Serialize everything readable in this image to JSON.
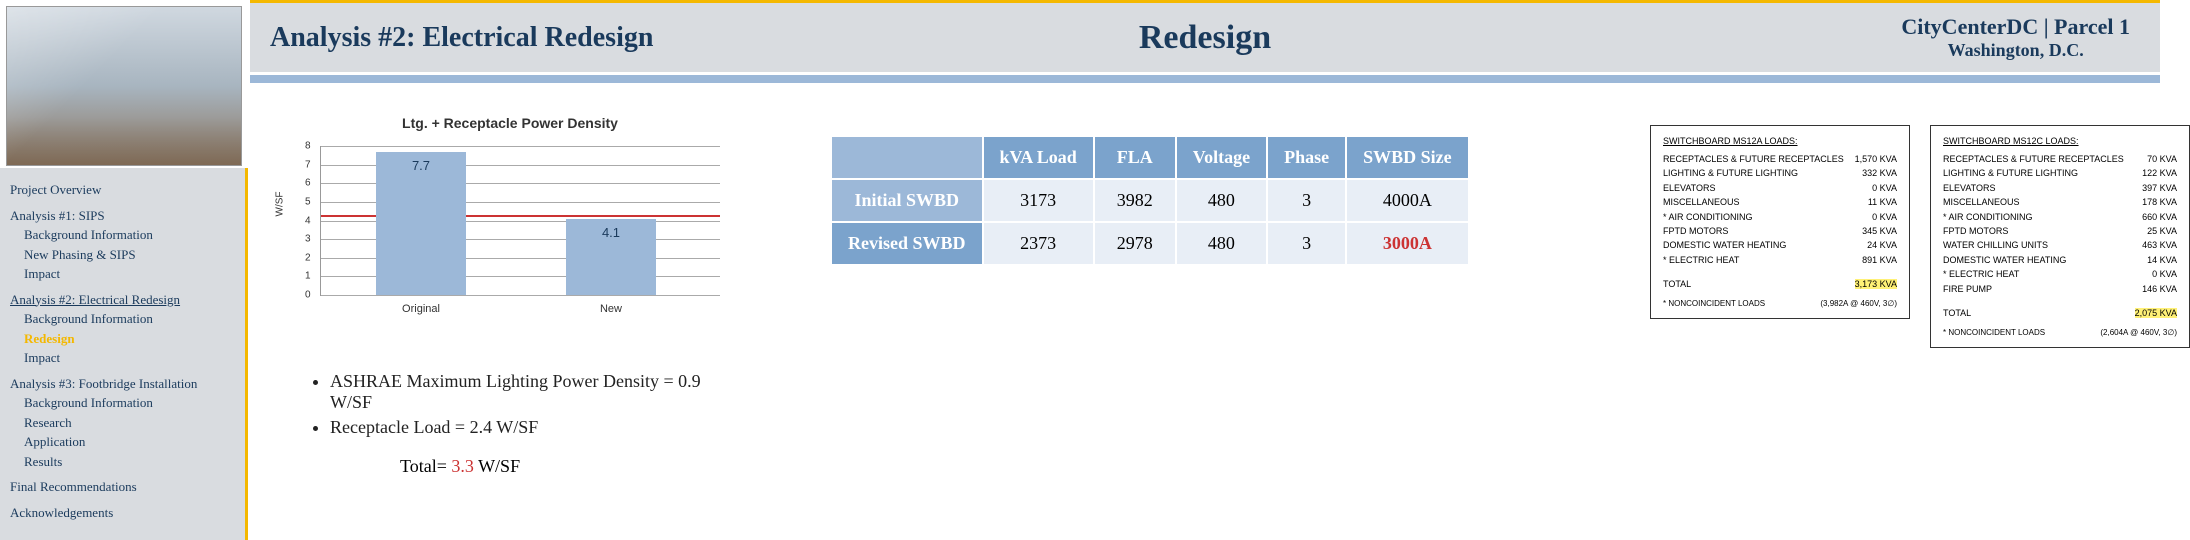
{
  "header": {
    "left_title": "Analysis #2: Electrical Redesign",
    "center": "Redesign",
    "right_top": "CityCenterDC | Parcel 1",
    "right_bottom": "Washington, D.C."
  },
  "sidebar": {
    "overview": "Project Overview",
    "a1": "Analysis #1: SIPS",
    "a1_bg": "Background Information",
    "a1_phasing": "New Phasing & SIPS",
    "a1_impact": "Impact",
    "a2": "Analysis #2: Electrical  Redesign",
    "a2_bg": "Background Information",
    "a2_redesign": "Redesign",
    "a2_impact": "Impact",
    "a3": "Analysis #3: Footbridge Installation",
    "a3_bg": "Background Information",
    "a3_research": "Research",
    "a3_app": "Application",
    "a3_results": "Results",
    "final": "Final Recommendations",
    "ack": "Acknowledgements"
  },
  "chart": {
    "title": "Ltg. + Receptacle Power Density",
    "ylabel": "W/SF",
    "ylim": [
      0,
      8
    ],
    "ytick_step": 1,
    "refline": 4.3,
    "bars": [
      {
        "label": "Original",
        "value": 7.7,
        "color": "#9cb8d8"
      },
      {
        "label": "New",
        "value": 4.1,
        "color": "#9cb8d8"
      }
    ],
    "grid_color": "#aaaaaa",
    "bg": "#ffffff"
  },
  "bullets": {
    "b1": "ASHRAE Maximum Lighting Power Density = 0.9 W/SF",
    "b2": "Receptacle Load = 2.4 W/SF",
    "total_label": "Total= ",
    "total_value": "3.3",
    "total_unit": " W/SF"
  },
  "table": {
    "headers": [
      "",
      "kVA Load",
      "FLA",
      "Voltage",
      "Phase",
      "SWBD Size"
    ],
    "rows": [
      {
        "hdr": "Initial SWBD",
        "kva": "3173",
        "fla": "3982",
        "volt": "480",
        "phase": "3",
        "size": "4000A"
      },
      {
        "hdr": "Revised SWBD",
        "kva": "2373",
        "fla": "2978",
        "volt": "480",
        "phase": "3",
        "size": "3000A"
      }
    ]
  },
  "loadbox1": {
    "title": "SWITCHBOARD MS12A LOADS:",
    "rows": [
      {
        "n": "RECEPTACLES & FUTURE RECEPTACLES",
        "v": "1,570 KVA"
      },
      {
        "n": "LIGHTING & FUTURE LIGHTING",
        "v": "332 KVA"
      },
      {
        "n": "ELEVATORS",
        "v": "0 KVA"
      },
      {
        "n": "MISCELLANEOUS",
        "v": "11 KVA"
      },
      {
        "n": "* AIR CONDITIONING",
        "v": "0 KVA"
      },
      {
        "n": "  FPTD MOTORS",
        "v": "345 KVA"
      },
      {
        "n": "  DOMESTIC WATER HEATING",
        "v": "24 KVA"
      },
      {
        "n": "* ELECTRIC HEAT",
        "v": "891 KVA"
      }
    ],
    "total_label": "TOTAL",
    "total_value": "3,173 KVA",
    "foot_label": "* NONCOINCIDENT LOADS",
    "foot_value": "(3,982A @ 460V, 3∅)"
  },
  "loadbox2": {
    "title": "SWITCHBOARD MS12C LOADS:",
    "rows": [
      {
        "n": "RECEPTACLES & FUTURE RECEPTACLES",
        "v": "70 KVA"
      },
      {
        "n": "LIGHTING & FUTURE LIGHTING",
        "v": "122 KVA"
      },
      {
        "n": "ELEVATORS",
        "v": "397 KVA"
      },
      {
        "n": "MISCELLANEOUS",
        "v": "178 KVA"
      },
      {
        "n": "* AIR CONDITIONING",
        "v": "660 KVA"
      },
      {
        "n": "  FPTD MOTORS",
        "v": "25 KVA"
      },
      {
        "n": "  WATER CHILLING UNITS",
        "v": "463 KVA"
      },
      {
        "n": "  DOMESTIC WATER HEATING",
        "v": "14 KVA"
      },
      {
        "n": "* ELECTRIC HEAT",
        "v": "0 KVA"
      },
      {
        "n": "  FIRE PUMP",
        "v": "146 KVA"
      }
    ],
    "total_label": "TOTAL",
    "total_value": "2,075 KVA",
    "foot_label": "* NONCOINCIDENT LOADS",
    "foot_value": "(2,604A @ 460V, 3∅)"
  }
}
